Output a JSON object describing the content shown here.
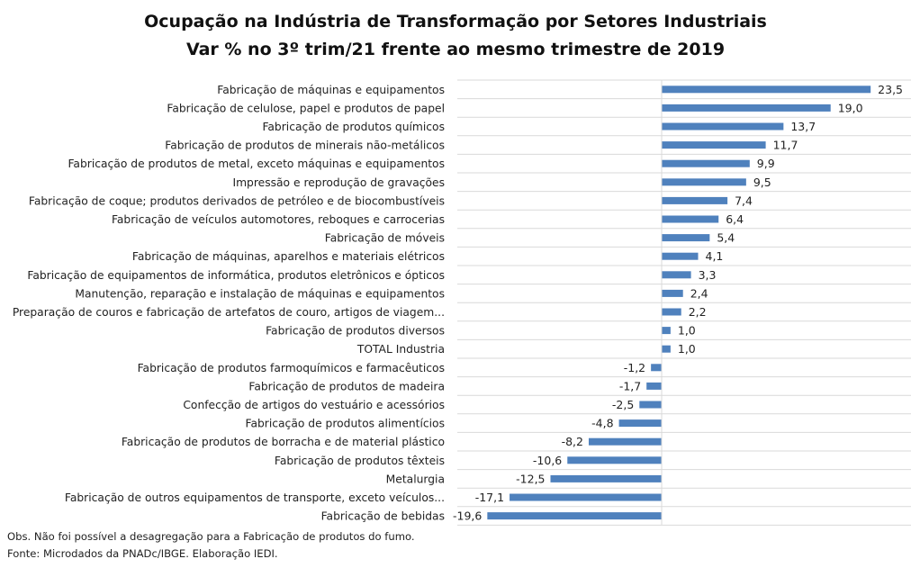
{
  "chart_data": {
    "type": "bar",
    "orientation": "horizontal",
    "title": "Ocupação na Indústria de Transformação por Setores Industriais",
    "subtitle": "Var % no 3º trim/21 frente ao mesmo trimestre de 2019",
    "xlabel": "",
    "ylabel": "",
    "xlim": [
      -22,
      28
    ],
    "grid": true,
    "legend": "none",
    "bar_color": "#4f81bd",
    "categories": [
      "Fabricação de máquinas e equipamentos",
      "Fabricação de celulose, papel e produtos de papel",
      "Fabricação de produtos químicos",
      "Fabricação de produtos de minerais não-metálicos",
      "Fabricação de produtos de metal, exceto máquinas e equipamentos",
      "Impressão e reprodução de gravações",
      "Fabricação de coque; produtos derivados de petróleo e de biocombustíveis",
      "Fabricação de veículos automotores, reboques e carrocerias",
      "Fabricação de móveis",
      "Fabricação de máquinas, aparelhos e materiais elétricos",
      "Fabricação de equipamentos de informática, produtos eletrônicos e ópticos",
      "Manutenção, reparação e instalação de máquinas e equipamentos",
      "Preparação de couros e fabricação de artefatos de couro, artigos de viagem...",
      "Fabricação de produtos diversos",
      "TOTAL Industria",
      "Fabricação de produtos farmoquímicos e farmacêuticos",
      "Fabricação de produtos de madeira",
      "Confecção de artigos do vestuário e acessórios",
      "Fabricação de produtos alimentícios",
      "Fabricação de produtos de borracha e de material plástico",
      "Fabricação de produtos têxteis",
      "Metalurgia",
      "Fabricação de outros equipamentos de transporte, exceto veículos...",
      "Fabricação de bebidas"
    ],
    "values": [
      23.5,
      19.0,
      13.7,
      11.7,
      9.9,
      9.5,
      7.4,
      6.4,
      5.4,
      4.1,
      3.3,
      2.4,
      2.2,
      1.0,
      1.0,
      -1.2,
      -1.7,
      -2.5,
      -4.8,
      -8.2,
      -10.6,
      -12.5,
      -17.1,
      -19.6
    ],
    "value_labels": [
      "23,5",
      "19,0",
      "13,7",
      "11,7",
      "9,9",
      "9,5",
      "7,4",
      "6,4",
      "5,4",
      "4,1",
      "3,3",
      "2,4",
      "2,2",
      "1,0",
      "1,0",
      "-1,2",
      "-1,7",
      "-2,5",
      "-4,8",
      "-8,2",
      "-10,6",
      "-12,5",
      "-17,1",
      "-19,6"
    ]
  },
  "footnotes": {
    "obs": "Obs. Não foi possível a desagregação para a Fabricação de produtos do fumo.",
    "source": "Fonte: Microdados da PNADc/IBGE. Elaboração IEDI."
  }
}
